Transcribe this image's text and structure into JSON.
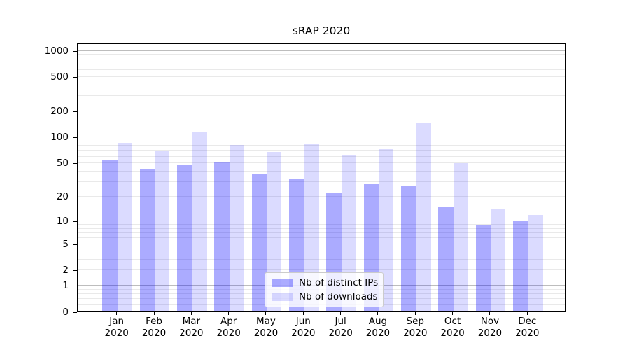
{
  "title": "sRAP 2020",
  "chart_data": {
    "type": "bar",
    "title": "sRAP 2020",
    "categories": [
      "Jan 2020",
      "Feb 2020",
      "Mar 2020",
      "Apr 2020",
      "May 2020",
      "Jun 2020",
      "Jul 2020",
      "Aug 2020",
      "Sep 2020",
      "Oct 2020",
      "Nov 2020",
      "Dec 2020"
    ],
    "series": [
      {
        "name": "Nb of distinct IPs",
        "values": [
          55,
          43,
          47,
          51,
          37,
          32,
          22,
          28,
          27,
          15,
          9,
          10
        ],
        "color": "rgba(0,0,255,0.33)"
      },
      {
        "name": "Nb of downloads",
        "values": [
          86,
          68,
          114,
          82,
          67,
          83,
          62,
          72,
          145,
          50,
          14,
          12
        ],
        "color": "rgba(0,0,255,0.14)"
      }
    ],
    "xlabel": "",
    "ylabel": "",
    "yscale": "log1p",
    "ylim": [
      0,
      1230
    ],
    "yticks": [
      1000,
      500,
      200,
      100,
      50,
      20,
      10,
      5,
      2,
      1,
      0
    ],
    "grid": "both",
    "legend_position": "lower-center"
  },
  "axis": {
    "major_gridlines": [
      1,
      10,
      100,
      1000
    ],
    "minor_grid_subs": [
      2,
      3,
      4,
      5,
      6,
      7,
      8,
      9
    ],
    "sub_one_minors": [
      0.2,
      0.4,
      0.6,
      0.8
    ]
  },
  "colors": {
    "bar_ips": "rgba(0,0,255,0.33)",
    "bar_downloads": "rgba(0,0,255,0.14)",
    "grid_major": "#bdbdbd",
    "grid_minor": "#e9e9e9",
    "spine": "#000000",
    "background": "#ffffff"
  }
}
